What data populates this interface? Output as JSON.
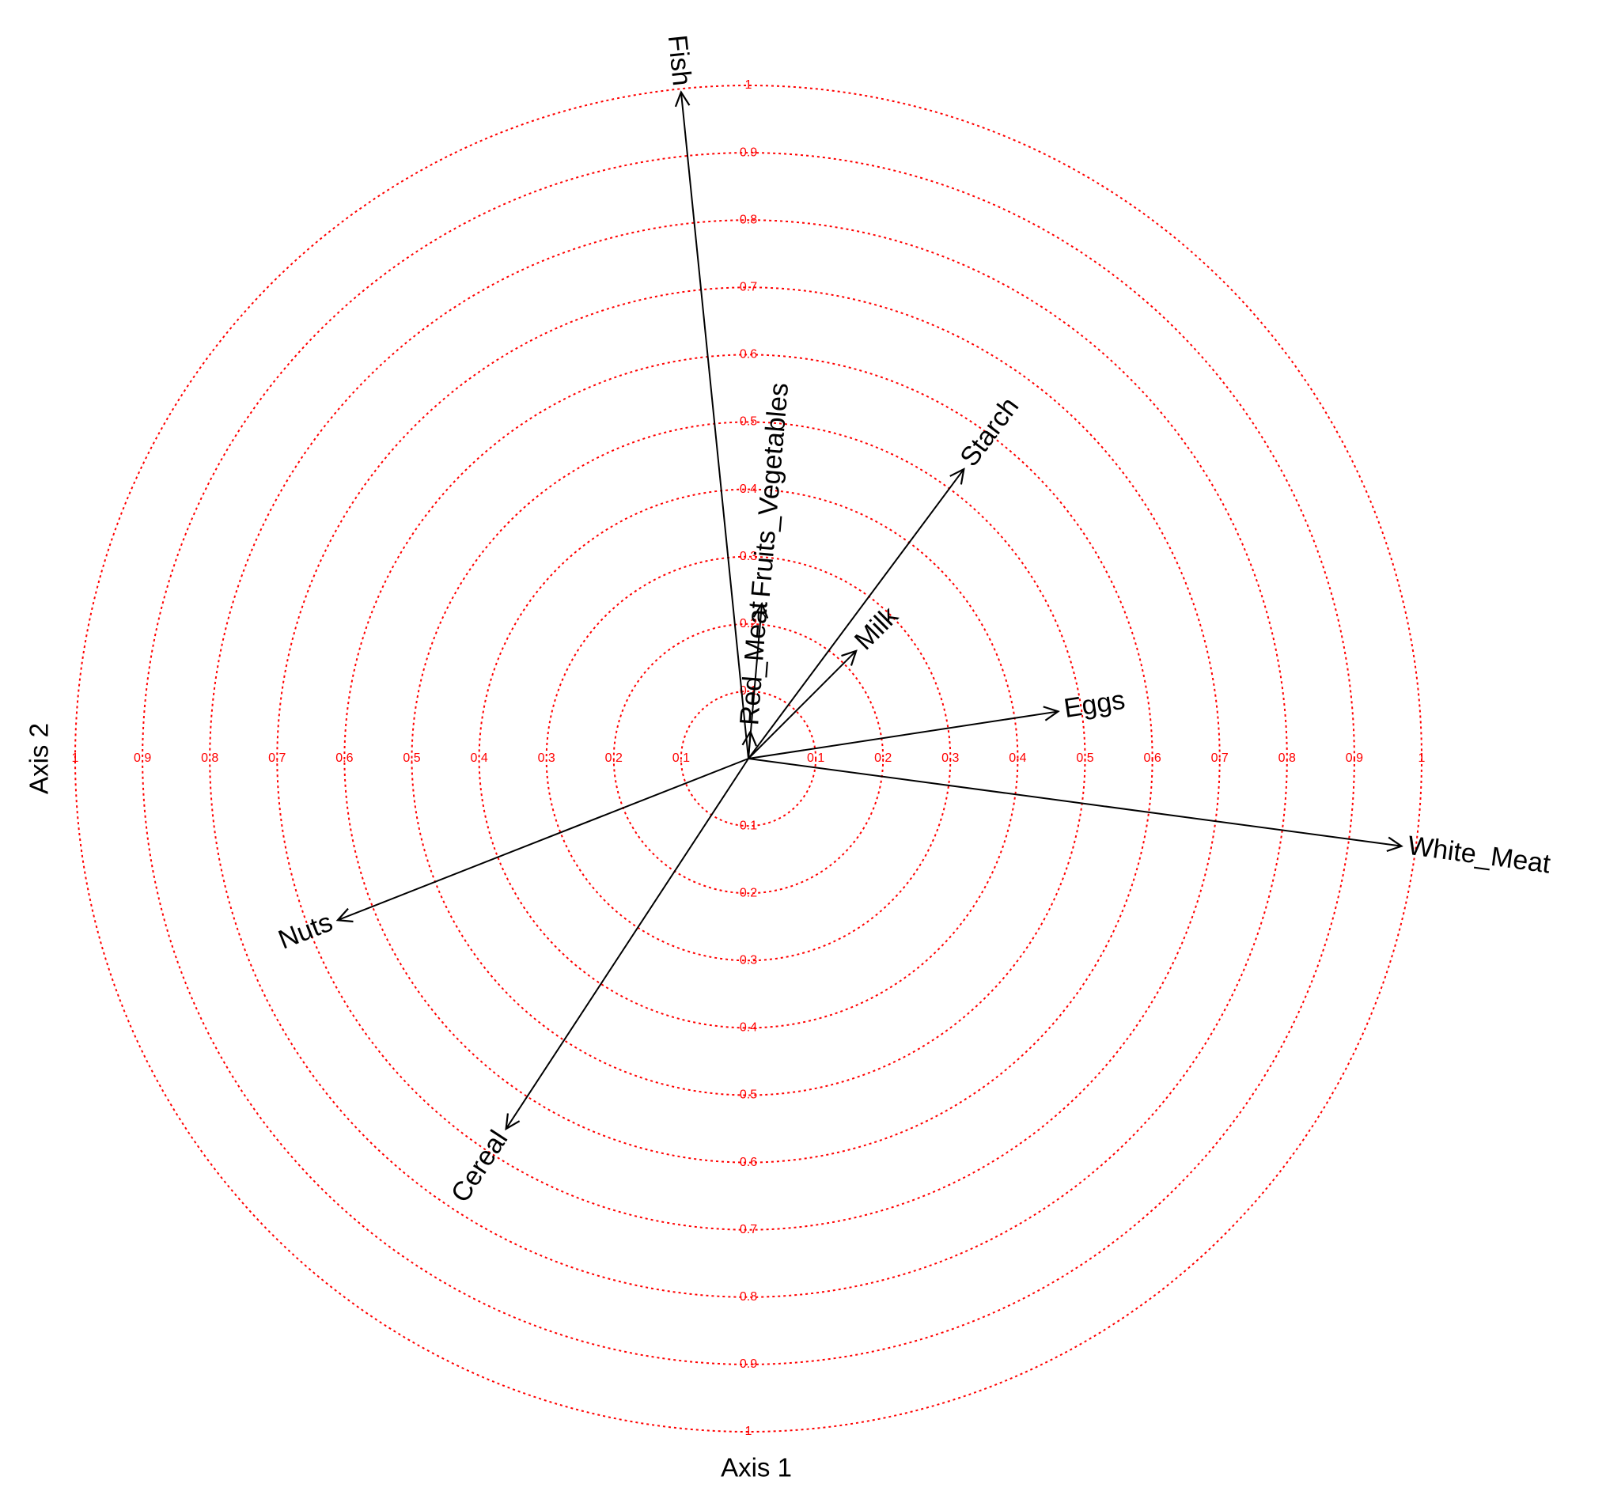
{
  "chart_data": {
    "type": "correlation_circle",
    "x_label": "Axis 1",
    "y_label": "Axis 2",
    "rlim": [
      0,
      1
    ],
    "rticks": [
      0.1,
      0.2,
      0.3,
      0.4,
      0.5,
      0.6,
      0.7,
      0.8,
      0.9,
      1
    ],
    "circle_color": "#ff0000",
    "arrow_color": "#000000",
    "variables": [
      {
        "name": "Fish",
        "x": -0.1,
        "y": 0.99
      },
      {
        "name": "Fruits_Vegetables",
        "x": 0.02,
        "y": 0.23
      },
      {
        "name": "Red_Meat",
        "x": 0.003,
        "y": 0.04
      },
      {
        "name": "Starch",
        "x": 0.32,
        "y": 0.43
      },
      {
        "name": "Milk",
        "x": 0.16,
        "y": 0.16
      },
      {
        "name": "Eggs",
        "x": 0.46,
        "y": 0.07
      },
      {
        "name": "White_Meat",
        "x": 0.97,
        "y": -0.13
      },
      {
        "name": "Nuts",
        "x": -0.61,
        "y": -0.24
      },
      {
        "name": "Cereal",
        "x": -0.36,
        "y": -0.55
      }
    ]
  }
}
